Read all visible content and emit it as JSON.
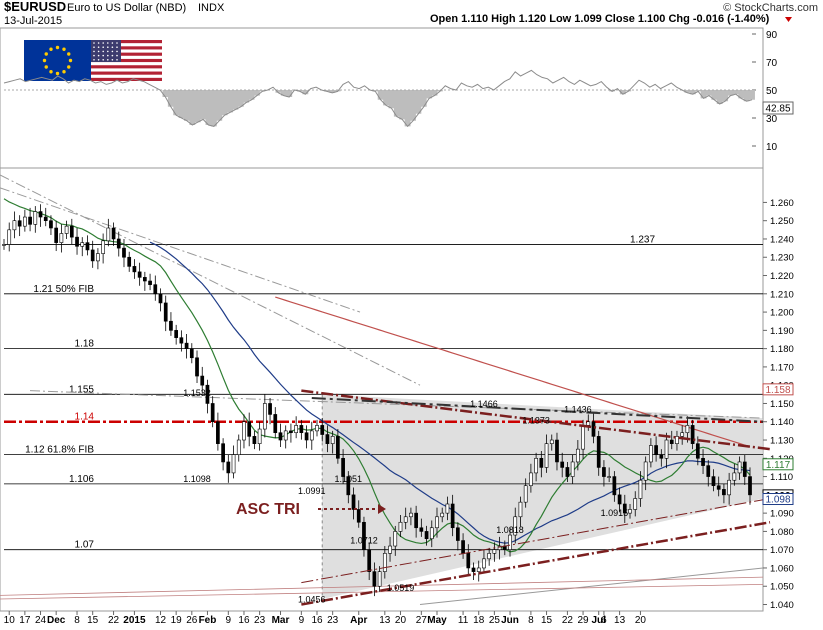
{
  "header": {
    "symbol": "$EURUSD",
    "name": "Euro to US Dollar (NBD)",
    "exchange": "INDX",
    "date": "13-Jul-2015",
    "ohlc": "Open 1.110  High 1.120  Low 1.099  Close 1.100  Chg -0.016 (-1.40%)",
    "brand": "© StockCharts.com"
  },
  "rsi": {
    "ticks": [
      "90",
      "70",
      "50",
      "30",
      "10"
    ],
    "current_label": "42.85",
    "values": [
      55,
      56,
      57,
      58,
      56,
      57,
      58,
      59,
      58,
      57,
      60,
      58,
      55,
      57,
      56,
      58,
      57,
      55,
      56,
      54,
      55,
      57,
      55,
      56,
      58,
      57,
      56,
      54,
      52,
      50,
      45,
      38,
      32,
      30,
      28,
      25,
      27,
      29,
      25,
      24,
      28,
      32,
      34,
      36,
      38,
      41,
      43,
      46,
      49,
      50,
      52,
      48,
      46,
      45,
      50,
      49,
      47,
      51,
      52,
      50,
      49,
      48,
      49,
      54,
      56,
      52,
      51,
      53,
      50,
      49,
      43,
      39,
      37,
      31,
      29,
      24,
      28,
      33,
      38,
      44,
      46,
      49,
      53,
      51,
      50,
      55,
      53,
      52,
      54,
      51,
      52,
      50,
      53,
      56,
      58,
      63,
      60,
      62,
      64,
      61,
      59,
      58,
      55,
      57,
      59,
      56,
      54,
      57,
      55,
      53,
      54,
      56,
      52,
      49,
      51,
      47,
      49,
      53,
      57,
      55,
      52,
      54,
      51,
      53,
      55,
      52,
      50,
      48,
      47,
      49,
      44,
      46,
      43,
      40,
      42,
      46,
      47,
      44,
      42,
      43
    ],
    "colors": {
      "line": "#8c8c8c",
      "shade": "#bdbdbd"
    }
  },
  "price": {
    "right_ticks": [
      "1.260",
      "1.250",
      "1.240",
      "1.230",
      "1.220",
      "1.210",
      "1.200",
      "1.190",
      "1.180",
      "1.170",
      "1.160",
      "1.150",
      "1.140",
      "1.130",
      "1.120",
      "1.110",
      "1.100",
      "1.090",
      "1.080",
      "1.070",
      "1.060",
      "1.050",
      "1.040"
    ],
    "badges": [
      {
        "text": "1.158",
        "value": 1.158,
        "color": "#c0504d"
      },
      {
        "text": "1.117",
        "value": 1.117,
        "color": "#2e7d32"
      },
      {
        "text": "1.100",
        "value": 1.1,
        "color": "#000000"
      },
      {
        "text": "1.098",
        "value": 1.098,
        "color": "#1f3c88"
      }
    ],
    "hlines": [
      {
        "value": 1.237,
        "text": "1.237",
        "label_side": "right"
      },
      {
        "value": 1.21,
        "text": "1.21  50% FIB",
        "label_side": "left"
      },
      {
        "value": 1.18,
        "text": "1.18",
        "label_side": "left"
      },
      {
        "value": 1.155,
        "text": "1.155",
        "label_side": "left"
      },
      {
        "value": 1.14,
        "text": "1.14",
        "label_side": "left",
        "style": "red-dashdot"
      },
      {
        "value": 1.122,
        "text": "1.12  61.8% FIB",
        "label_side": "left"
      },
      {
        "value": 1.106,
        "text": "1.106",
        "label_side": "left"
      },
      {
        "value": 1.07,
        "text": "1.07",
        "label_side": "left"
      }
    ],
    "price_labels": [
      {
        "text": "1.1532",
        "x": 37,
        "y": 1.154
      },
      {
        "text": "1.1098",
        "x": 37,
        "y": 1.107
      },
      {
        "text": "1.0991",
        "x": 59,
        "y": 1.1005
      },
      {
        "text": "1.1051",
        "x": 66,
        "y": 1.107
      },
      {
        "text": "1.0712",
        "x": 69,
        "y": 1.0735
      },
      {
        "text": "1.0456",
        "x": 59,
        "y": 1.041
      },
      {
        "text": "1.0519",
        "x": 76,
        "y": 1.0475
      },
      {
        "text": "1.1466",
        "x": 92,
        "y": 1.148
      },
      {
        "text": "1.1373",
        "x": 102,
        "y": 1.139
      },
      {
        "text": "1.1436",
        "x": 110,
        "y": 1.145
      },
      {
        "text": "1.0818",
        "x": 97,
        "y": 1.079
      },
      {
        "text": "1.0915",
        "x": 117,
        "y": 1.0885
      }
    ],
    "annotation": {
      "text": "ASC TRI",
      "color": "#7b1f1f"
    },
    "x_ticks": [
      {
        "label": "10",
        "x": 1
      },
      {
        "label": "17",
        "x": 4
      },
      {
        "label": "24",
        "x": 7
      },
      {
        "label": "Dec",
        "x": 10
      },
      {
        "label": "8",
        "x": 14
      },
      {
        "label": "15",
        "x": 17
      },
      {
        "label": "22",
        "x": 21
      },
      {
        "label": "2015",
        "x": 25
      },
      {
        "label": "12",
        "x": 30
      },
      {
        "label": "19",
        "x": 33
      },
      {
        "label": "26",
        "x": 36
      },
      {
        "label": "Feb",
        "x": 39
      },
      {
        "label": "9",
        "x": 43
      },
      {
        "label": "16",
        "x": 46
      },
      {
        "label": "23",
        "x": 49
      },
      {
        "label": "Mar",
        "x": 53
      },
      {
        "label": "9",
        "x": 57
      },
      {
        "label": "16",
        "x": 60
      },
      {
        "label": "23",
        "x": 63
      },
      {
        "label": "Apr",
        "x": 68
      },
      {
        "label": "13",
        "x": 73
      },
      {
        "label": "20",
        "x": 76
      },
      {
        "label": "27",
        "x": 80
      },
      {
        "label": "May",
        "x": 83
      },
      {
        "label": "11",
        "x": 88
      },
      {
        "label": "18",
        "x": 91
      },
      {
        "label": "25",
        "x": 94
      },
      {
        "label": "Jun",
        "x": 97
      },
      {
        "label": "8",
        "x": 101
      },
      {
        "label": "15",
        "x": 104
      },
      {
        "label": "22",
        "x": 108
      },
      {
        "label": "29",
        "x": 111
      },
      {
        "label": "Jul",
        "x": 114
      },
      {
        "label": "6",
        "x": 115
      },
      {
        "label": "13",
        "x": 118
      },
      {
        "label": "20",
        "x": 122
      }
    ],
    "colors": {
      "ma_blue": "#1f3c88",
      "ma_green": "#2e7d32",
      "ma_red": "#c0504d",
      "trend": "#7b1f1f",
      "box": "#d4d4d4",
      "hline": "#000000",
      "red_line": "#cc0000"
    }
  },
  "chart_data": {
    "type": "line",
    "title": "$EURUSD Euro to US Dollar (NBD) INDX",
    "ylim": [
      1.037,
      1.275
    ],
    "series": [
      {
        "values": [
          1.237,
          1.245,
          1.25,
          1.247,
          1.252,
          1.248,
          1.255,
          1.252,
          1.25,
          1.246,
          1.238,
          1.243,
          1.247,
          1.241,
          1.236,
          1.238,
          1.234,
          1.228,
          1.232,
          1.239,
          1.246,
          1.24,
          1.235,
          1.23,
          1.225,
          1.222,
          1.219,
          1.217,
          1.215,
          1.21,
          1.205,
          1.195,
          1.19,
          1.186,
          1.183,
          1.18,
          1.175,
          1.165,
          1.16,
          1.15,
          1.14,
          1.128,
          1.118,
          1.112,
          1.122,
          1.13,
          1.14,
          1.132,
          1.128,
          1.136,
          1.15,
          1.144,
          1.134,
          1.13,
          1.135,
          1.134,
          1.138,
          1.134,
          1.13,
          1.135,
          1.138,
          1.133,
          1.128,
          1.132,
          1.12,
          1.11,
          1.1,
          1.092,
          1.085,
          1.07,
          1.058,
          1.05,
          1.058,
          1.068,
          1.072,
          1.08,
          1.085,
          1.088,
          1.09,
          1.082,
          1.08,
          1.076,
          1.082,
          1.088,
          1.09,
          1.095,
          1.082,
          1.075,
          1.068,
          1.06,
          1.058,
          1.06,
          1.065,
          1.068,
          1.07,
          1.072,
          1.07,
          1.078,
          1.088,
          1.096,
          1.105,
          1.112,
          1.12,
          1.115,
          1.128,
          1.13,
          1.118,
          1.115,
          1.11,
          1.118,
          1.125,
          1.138,
          1.14,
          1.132,
          1.115,
          1.11,
          1.11,
          1.1,
          1.095,
          1.09,
          1.092,
          1.098,
          1.108,
          1.118,
          1.127,
          1.122,
          1.12,
          1.13,
          1.128,
          1.132,
          1.134,
          1.138,
          1.128,
          1.12,
          1.116,
          1.11,
          1.105,
          1.103,
          1.1,
          1.108,
          1.112,
          1.118,
          1.11,
          1.1
        ]
      }
    ]
  }
}
